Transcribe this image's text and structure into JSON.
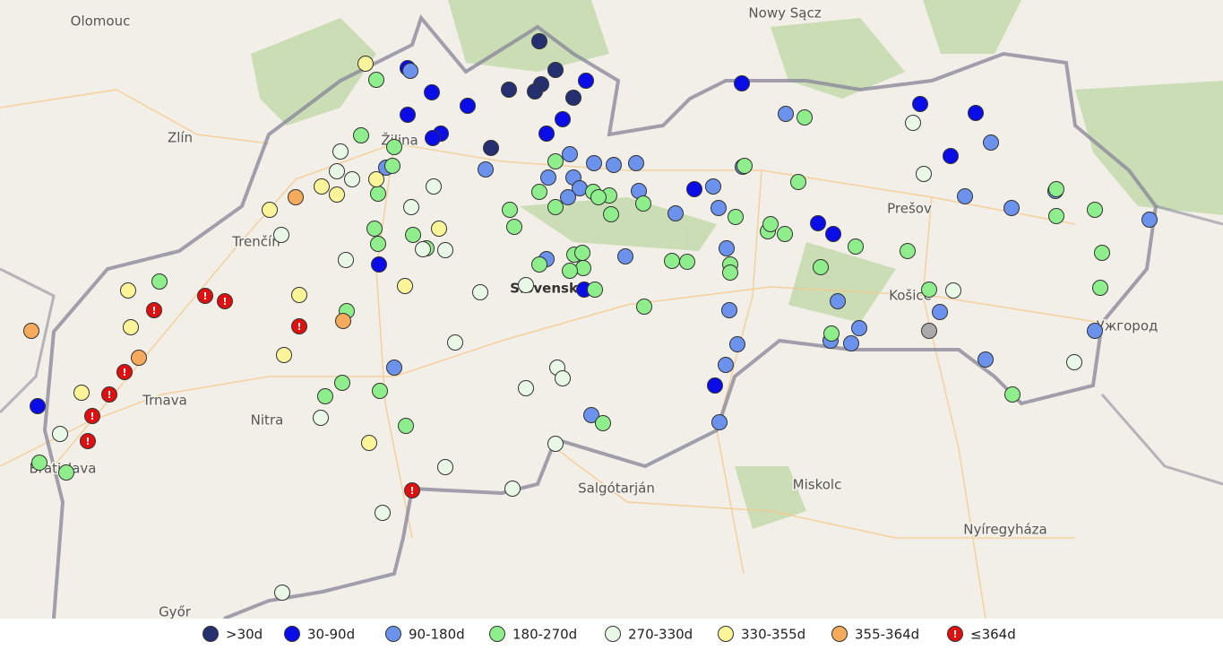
{
  "map": {
    "places": [
      "Olomouc",
      "Zlín",
      "Žilina",
      "Trenčín",
      "Trnava",
      "Nitra",
      "Bratislava",
      "Slovensko",
      "Nowy Sącz",
      "Prešov",
      "Košice",
      "Ужгород",
      "Salgótarján",
      "Miskolc",
      "Nyíregyháza",
      "Győr"
    ]
  },
  "legend": {
    "alert_symbol": "!",
    "items": [
      {
        "label": ">30d",
        "color": "#253070"
      },
      {
        "label": "30-90d",
        "color": "#0a0de8"
      },
      {
        "label": "90-180d",
        "color": "#6b92ec"
      },
      {
        "label": "180-270d",
        "color": "#8fee8c"
      },
      {
        "label": "270-330d",
        "color": "#e9f8e6"
      },
      {
        "label": "330-355d",
        "color": "#fbf59a"
      },
      {
        "label": "355-364d",
        "color": "#f6ab5c"
      },
      {
        "label": "≤364d",
        "color": "#e01010"
      }
    ]
  }
}
